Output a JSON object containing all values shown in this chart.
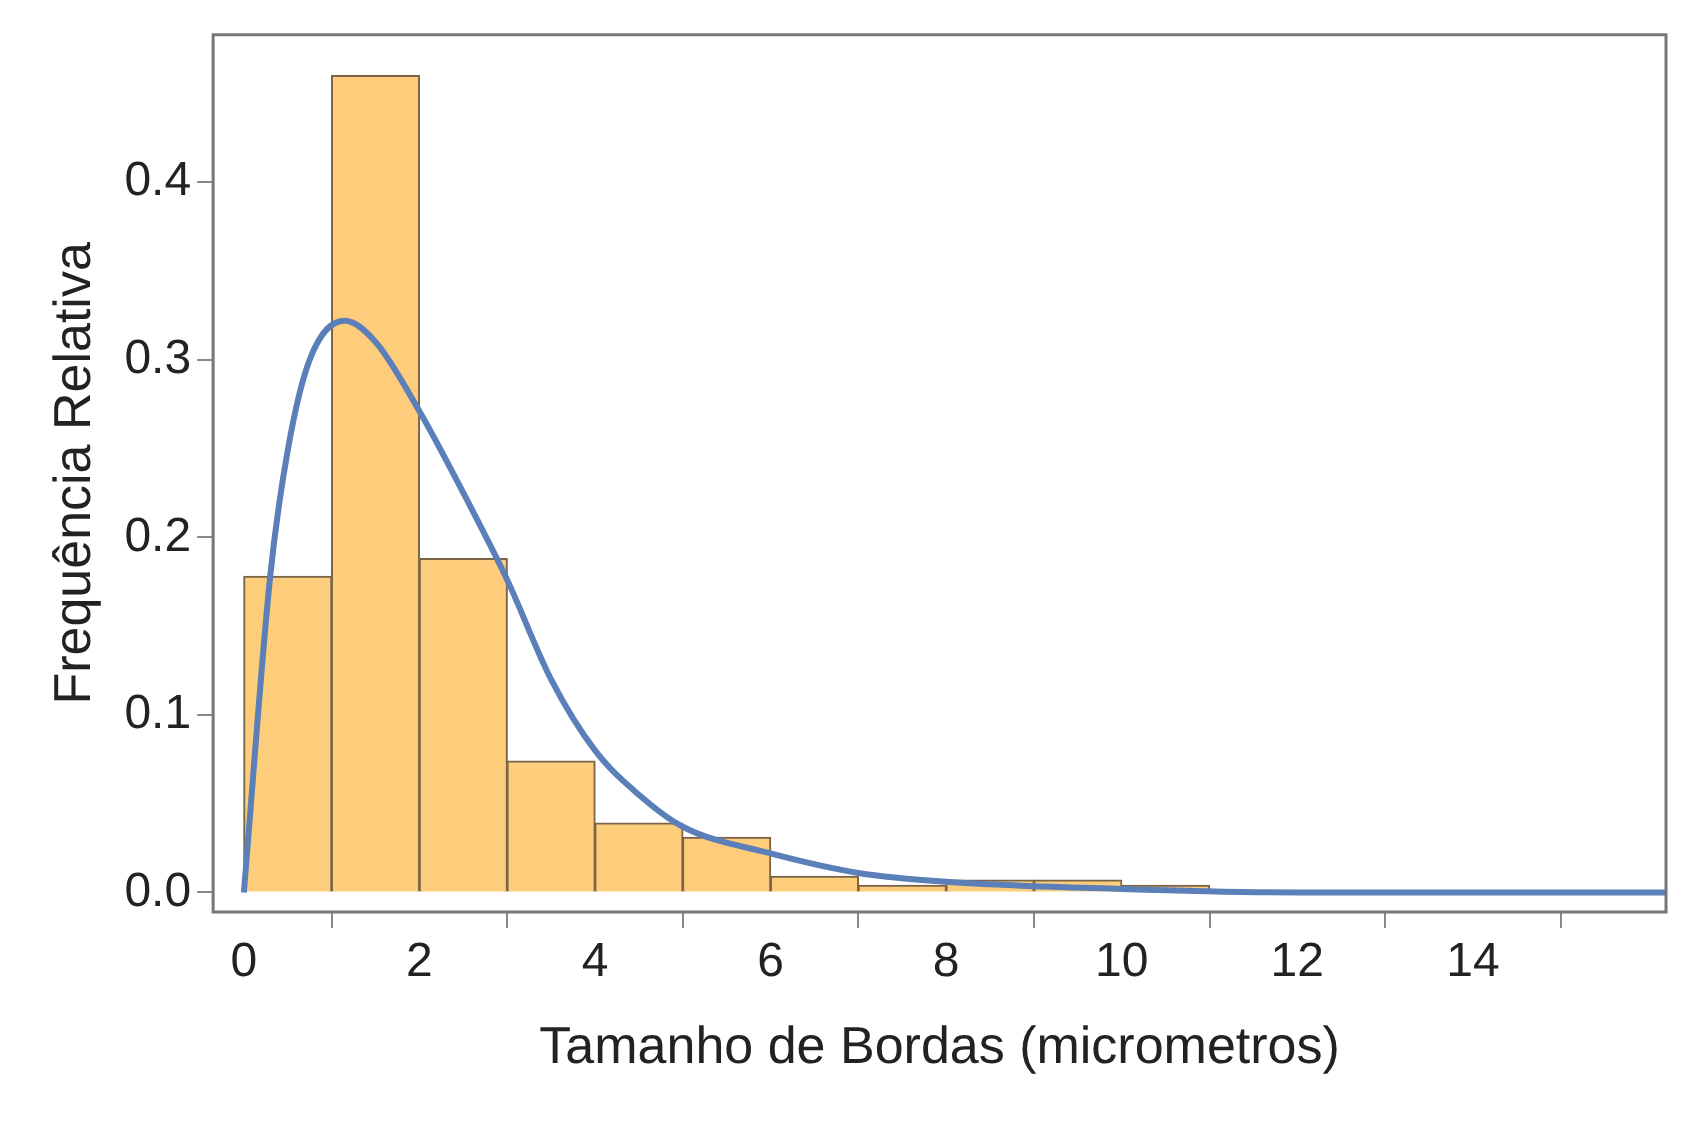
{
  "chart_data": {
    "type": "histogram",
    "xlabel": "Tamanho de Bordas (micrometros)",
    "ylabel": "Frequência Relativa",
    "xlim": [
      -0.35,
      16.2
    ],
    "ylim": [
      -0.011,
      0.483
    ],
    "xticks": [
      0,
      2,
      4,
      6,
      8,
      10,
      12,
      14
    ],
    "yticks": [
      {
        "value": 0,
        "label": "0.0"
      },
      0.1,
      0.2,
      0.3,
      0.4
    ],
    "grid": false,
    "legend": false,
    "series": [
      {
        "color": "#fdcd7c",
        "bins": [
          0,
          1,
          2,
          3,
          4,
          5,
          6,
          7,
          8,
          9,
          10,
          11,
          12
        ],
        "values": [
          0.178,
          0.46,
          0.188,
          0.074,
          0.039,
          0.031,
          0.009,
          0.004,
          0.007,
          0.007,
          0.004,
          0.001
        ]
      },
      {
        "type": "line",
        "color": "#5b7fb8",
        "x": [
          0,
          0.3,
          0.5,
          0.75,
          1.15,
          1.5,
          2,
          2.5,
          3,
          3.5,
          4,
          4.5,
          5,
          6,
          7,
          8,
          10,
          12,
          15,
          16.2
        ],
        "values": [
          0,
          0.178,
          0.249,
          0.3,
          0.322,
          0.31,
          0.271,
          0.225,
          0.176,
          0.12,
          0.08,
          0.055,
          0.037,
          0.022,
          0.011,
          0.006,
          0.002,
          0,
          0,
          0
        ]
      }
    ]
  }
}
